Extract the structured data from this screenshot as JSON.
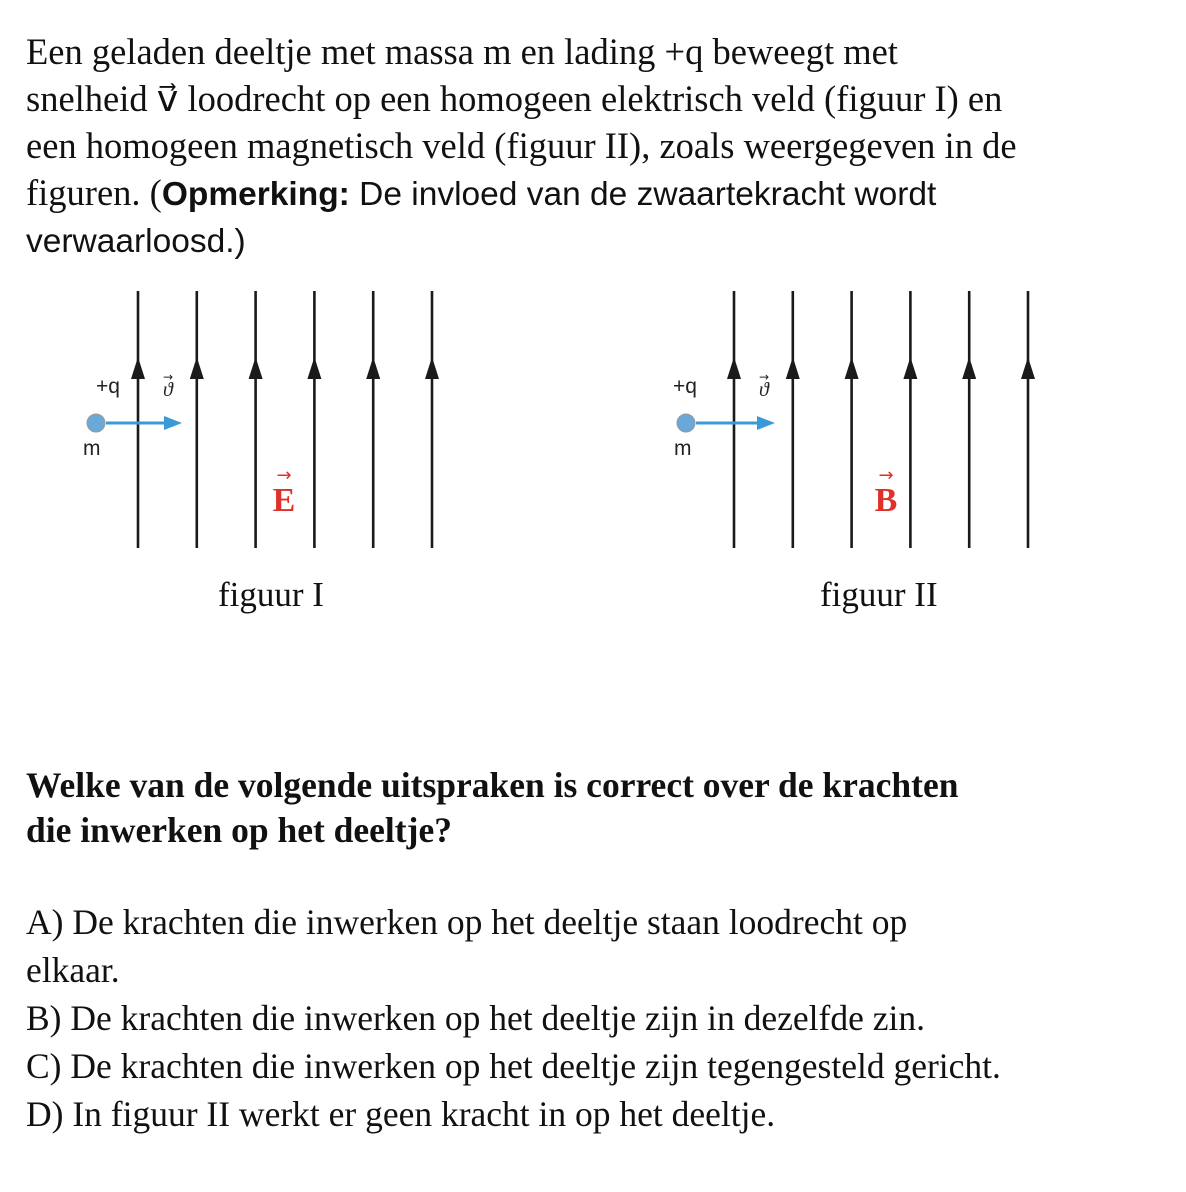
{
  "intro": {
    "line1": "Een geladen deeltje met massa m en lading +q beweegt met",
    "line2a": "snelheid",
    "v_symbol": "v⃗",
    "line2b": "loodrecht op een homogeen elektrisch veld (figuur I) en",
    "line3": "een homogeen magnetisch veld (figuur II), zoals weergegeven in de",
    "line4a": "figuren. (",
    "note_label": "Opmerking:",
    "line4b": " De invloed van de zwaartekracht wordt",
    "line5": "verwaarloosd.)"
  },
  "figures": [
    {
      "charge_label": "+q",
      "mass_label": "m",
      "velocity_label": "ϑ",
      "field_label": "E",
      "caption": "figuur I",
      "field_line_count": 6
    },
    {
      "charge_label": "+q",
      "mass_label": "m",
      "velocity_label": "ϑ",
      "field_label": "B",
      "caption": "figuur II",
      "field_line_count": 6
    }
  ],
  "colors": {
    "field_label": "#e0302a",
    "velocity_arrow": "#3a9ad9",
    "particle": "#6aa8d8",
    "field_lines": "#1a1a1a"
  },
  "question": {
    "line1": "Welke van de volgende uitspraken is correct over de krachten",
    "line2": "die inwerken op het deeltje?"
  },
  "answers": [
    {
      "text": "A) De krachten die inwerken op het deeltje staan loodrecht op",
      "text2": "elkaar."
    },
    {
      "text": "B) De krachten die inwerken op het deeltje zijn in dezelfde zin."
    },
    {
      "text": "C) De krachten die inwerken op het deeltje zijn tegengesteld gericht."
    },
    {
      "text": "D) In figuur II werkt er geen kracht in op het deeltje."
    }
  ]
}
